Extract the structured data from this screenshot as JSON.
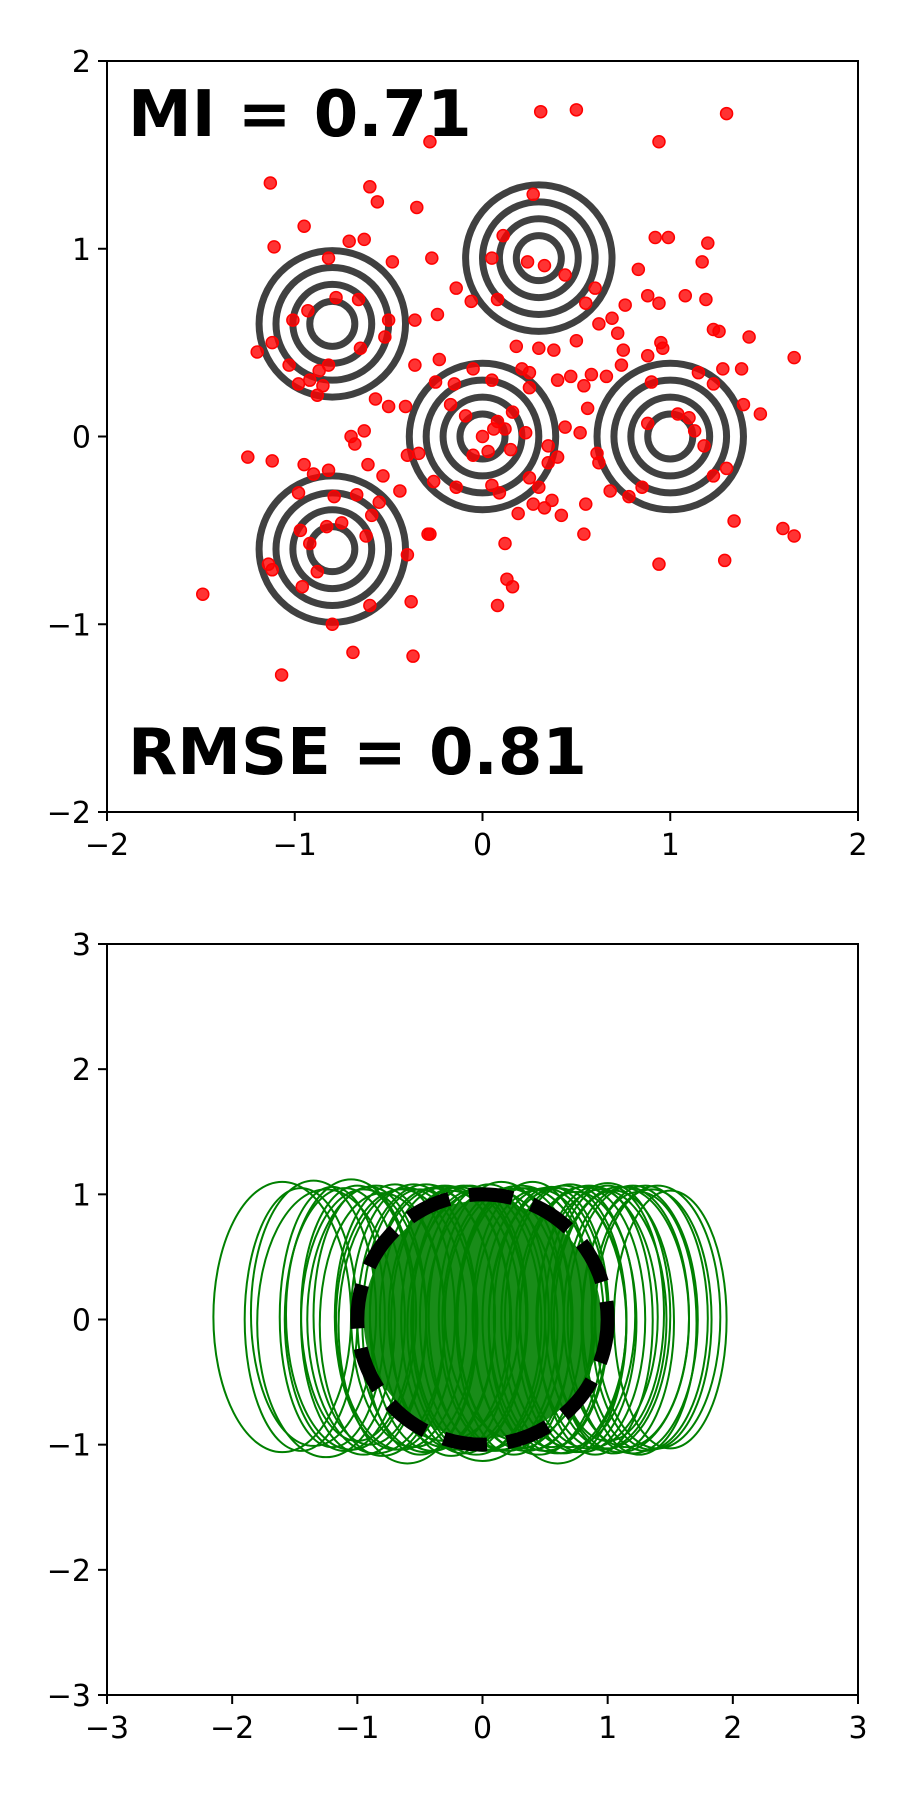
{
  "chart_data": [
    {
      "type": "scatter",
      "title": "",
      "xlabel": "",
      "ylabel": "",
      "xlim": [
        -2,
        2
      ],
      "ylim": [
        -2,
        2
      ],
      "xticks": [
        -2,
        -1,
        0,
        1,
        2
      ],
      "yticks": [
        -2,
        -1,
        0,
        1,
        2
      ],
      "xtick_labels": [
        "−2",
        "−1",
        "0",
        "1",
        "2"
      ],
      "ytick_labels": [
        "−2",
        "−1",
        "0",
        "1",
        "2"
      ],
      "grid": false,
      "annotations": {
        "mi": "MI = 0.71",
        "rmse": "RMSE = 0.81"
      },
      "contour_centers": [
        [
          -0.8,
          0.6
        ],
        [
          0.3,
          0.95
        ],
        [
          0.0,
          0.0
        ],
        [
          1.0,
          0.0
        ],
        [
          -0.8,
          -0.6
        ]
      ],
      "contour_radii": [
        0.12,
        0.21,
        0.3,
        0.39
      ],
      "contour_color": "#404040",
      "point_color": "#ff0000",
      "points": [
        [
          -1.49,
          -0.84
        ],
        [
          -1.07,
          -1.27
        ],
        [
          -0.37,
          -1.17
        ],
        [
          -0.69,
          -1.15
        ],
        [
          0.13,
          -0.76
        ],
        [
          0.16,
          -0.8
        ],
        [
          0.08,
          -0.9
        ],
        [
          -1.14,
          -0.68
        ],
        [
          -1.12,
          -0.71
        ],
        [
          -0.96,
          -0.8
        ],
        [
          -0.88,
          -0.72
        ],
        [
          -0.6,
          -0.9
        ],
        [
          -0.8,
          -1.0
        ],
        [
          -0.38,
          -0.88
        ],
        [
          -0.4,
          -0.63
        ],
        [
          -0.28,
          -0.52
        ],
        [
          0.12,
          -0.57
        ],
        [
          -0.97,
          -0.5
        ],
        [
          -0.92,
          -0.57
        ],
        [
          -0.83,
          -0.48
        ],
        [
          -0.75,
          -0.46
        ],
        [
          -0.62,
          -0.53
        ],
        [
          -0.59,
          -0.42
        ],
        [
          -0.55,
          -0.35
        ],
        [
          -0.98,
          -0.3
        ],
        [
          -0.9,
          -0.2
        ],
        [
          -0.79,
          -0.32
        ],
        [
          -0.67,
          -0.31
        ],
        [
          -0.53,
          -0.21
        ],
        [
          -0.44,
          -0.29
        ],
        [
          -1.25,
          -0.11
        ],
        [
          -1.12,
          -0.13
        ],
        [
          -0.95,
          -0.15
        ],
        [
          -0.82,
          -0.18
        ],
        [
          -0.68,
          -0.04
        ],
        [
          -0.61,
          -0.15
        ],
        [
          -0.4,
          -0.1
        ],
        [
          -0.26,
          -0.24
        ],
        [
          -0.7,
          0.0
        ],
        [
          -0.63,
          0.03
        ],
        [
          -0.5,
          0.16
        ],
        [
          -0.41,
          0.16
        ],
        [
          -0.57,
          0.2
        ],
        [
          -1.12,
          0.5
        ],
        [
          -1.2,
          0.45
        ],
        [
          -1.03,
          0.38
        ],
        [
          -0.92,
          0.3
        ],
        [
          -0.85,
          0.27
        ],
        [
          -0.98,
          0.28
        ],
        [
          -0.87,
          0.35
        ],
        [
          -0.82,
          0.38
        ],
        [
          -0.88,
          0.22
        ],
        [
          -0.65,
          0.47
        ],
        [
          -0.52,
          0.53
        ],
        [
          -0.36,
          0.38
        ],
        [
          -0.25,
          0.29
        ],
        [
          -0.15,
          0.28
        ],
        [
          -1.01,
          0.62
        ],
        [
          -0.93,
          0.67
        ],
        [
          -0.78,
          0.74
        ],
        [
          -0.66,
          0.73
        ],
        [
          -0.5,
          0.62
        ],
        [
          -0.36,
          0.62
        ],
        [
          -1.11,
          1.01
        ],
        [
          -0.95,
          1.12
        ],
        [
          -0.82,
          0.95
        ],
        [
          -0.71,
          1.04
        ],
        [
          -0.63,
          1.05
        ],
        [
          -0.56,
          1.25
        ],
        [
          -0.6,
          1.33
        ],
        [
          -0.48,
          0.93
        ],
        [
          -1.13,
          1.35
        ],
        [
          -0.35,
          1.22
        ],
        [
          -0.27,
          0.95
        ],
        [
          -0.24,
          0.65
        ],
        [
          -0.14,
          0.79
        ],
        [
          -0.06,
          0.72
        ],
        [
          0.08,
          0.73
        ],
        [
          0.05,
          0.95
        ],
        [
          0.11,
          1.07
        ],
        [
          0.24,
          0.93
        ],
        [
          0.33,
          0.91
        ],
        [
          0.44,
          0.86
        ],
        [
          0.27,
          1.29
        ],
        [
          0.55,
          0.71
        ],
        [
          0.6,
          0.79
        ],
        [
          0.76,
          0.7
        ],
        [
          0.83,
          0.89
        ],
        [
          0.88,
          0.75
        ],
        [
          0.72,
          0.55
        ],
        [
          0.62,
          0.6
        ],
        [
          0.5,
          0.51
        ],
        [
          0.47,
          0.32
        ],
        [
          0.4,
          0.3
        ],
        [
          0.21,
          0.36
        ],
        [
          0.3,
          0.47
        ],
        [
          0.18,
          0.48
        ],
        [
          0.38,
          0.46
        ],
        [
          -0.05,
          0.36
        ],
        [
          0.25,
          0.26
        ],
        [
          0.25,
          0.34
        ],
        [
          0.05,
          0.3
        ],
        [
          0.54,
          0.27
        ],
        [
          0.66,
          0.32
        ],
        [
          0.74,
          0.38
        ],
        [
          0.88,
          0.43
        ],
        [
          0.95,
          0.5
        ],
        [
          0.94,
          0.71
        ],
        [
          0.99,
          1.06
        ],
        [
          1.08,
          0.75
        ],
        [
          1.17,
          0.93
        ],
        [
          1.19,
          0.73
        ],
        [
          1.2,
          1.03
        ],
        [
          1.23,
          0.57
        ],
        [
          1.26,
          0.56
        ],
        [
          1.15,
          0.34
        ],
        [
          1.23,
          0.28
        ],
        [
          1.38,
          0.36
        ],
        [
          1.42,
          0.53
        ],
        [
          1.48,
          0.12
        ],
        [
          1.39,
          0.17
        ],
        [
          1.28,
          0.36
        ],
        [
          1.66,
          0.42
        ],
        [
          1.1,
          0.1
        ],
        [
          1.18,
          -0.05
        ],
        [
          1.3,
          -0.17
        ],
        [
          1.23,
          -0.21
        ],
        [
          1.34,
          -0.45
        ],
        [
          1.6,
          -0.49
        ],
        [
          1.66,
          -0.53
        ],
        [
          1.29,
          -0.66
        ],
        [
          0.94,
          -0.68
        ],
        [
          0.85,
          -0.27
        ],
        [
          0.68,
          -0.29
        ],
        [
          0.61,
          -0.09
        ],
        [
          0.62,
          -0.14
        ],
        [
          0.52,
          0.02
        ],
        [
          0.4,
          -0.11
        ],
        [
          0.35,
          -0.14
        ],
        [
          0.25,
          -0.22
        ],
        [
          0.3,
          -0.27
        ],
        [
          0.27,
          -0.36
        ],
        [
          0.33,
          -0.38
        ],
        [
          0.37,
          -0.34
        ],
        [
          0.42,
          -0.42
        ],
        [
          0.55,
          -0.36
        ],
        [
          0.54,
          -0.52
        ],
        [
          0.19,
          -0.41
        ],
        [
          0.09,
          -0.3
        ],
        [
          0.05,
          -0.26
        ],
        [
          0.0,
          0.0
        ],
        [
          0.06,
          0.04
        ],
        [
          0.12,
          0.04
        ],
        [
          0.15,
          -0.07
        ],
        [
          -0.05,
          -0.1
        ],
        [
          -0.14,
          -0.27
        ],
        [
          -0.29,
          -0.52
        ],
        [
          -0.17,
          0.17
        ],
        [
          -0.23,
          0.41
        ],
        [
          0.31,
          1.73
        ],
        [
          0.94,
          1.57
        ],
        [
          1.3,
          1.72
        ],
        [
          0.5,
          1.74
        ],
        [
          -0.28,
          1.57
        ],
        [
          0.92,
          1.06
        ],
        [
          1.04,
          0.12
        ],
        [
          0.56,
          0.15
        ],
        [
          1.13,
          0.03
        ],
        [
          0.78,
          -0.32
        ],
        [
          0.9,
          0.29
        ],
        [
          0.96,
          0.47
        ],
        [
          0.88,
          0.07
        ],
        [
          0.16,
          0.13
        ],
        [
          0.08,
          0.08
        ],
        [
          0.23,
          0.02
        ],
        [
          -0.09,
          0.11
        ],
        [
          0.03,
          -0.08
        ],
        [
          -0.34,
          -0.09
        ],
        [
          0.35,
          -0.05
        ],
        [
          0.44,
          0.05
        ],
        [
          0.58,
          0.33
        ],
        [
          0.69,
          0.63
        ],
        [
          0.75,
          0.46
        ]
      ]
    },
    {
      "type": "line",
      "title": "",
      "xlabel": "",
      "ylabel": "",
      "xlim": [
        -3,
        3
      ],
      "ylim": [
        -3,
        3
      ],
      "xticks": [
        -3,
        -2,
        -1,
        0,
        1,
        2,
        3
      ],
      "yticks": [
        -3,
        -2,
        -1,
        0,
        1,
        2,
        3
      ],
      "xtick_labels": [
        "−3",
        "−2",
        "−1",
        "0",
        "1",
        "2",
        "3"
      ],
      "ytick_labels": [
        "−3",
        "−2",
        "−1",
        "0",
        "1",
        "2",
        "3"
      ],
      "grid": false,
      "green_color": "#008000",
      "reference_circle": {
        "cx": 0,
        "cy": 0,
        "r": 1,
        "color": "#000000",
        "style": "dashed"
      },
      "ellipses": [
        [
          -1.6,
          0.02,
          0.55,
          1.08
        ],
        [
          -1.45,
          0.0,
          0.45,
          1.05
        ],
        [
          -1.35,
          0.05,
          0.5,
          1.06
        ],
        [
          -1.25,
          -0.03,
          0.55,
          1.07
        ],
        [
          -1.2,
          0.02,
          0.42,
          1.04
        ],
        [
          -1.1,
          0.0,
          0.48,
          1.05
        ],
        [
          -1.05,
          0.04,
          0.52,
          1.08
        ],
        [
          -0.95,
          -0.02,
          0.5,
          1.06
        ],
        [
          -0.9,
          0.03,
          0.45,
          1.03
        ],
        [
          -0.85,
          0.0,
          0.55,
          1.07
        ],
        [
          -0.8,
          -0.04,
          0.5,
          1.05
        ],
        [
          -0.7,
          0.02,
          0.48,
          1.06
        ],
        [
          -0.65,
          0.0,
          0.52,
          1.04
        ],
        [
          -0.55,
          0.03,
          0.5,
          1.05
        ],
        [
          -0.5,
          -0.02,
          0.46,
          1.06
        ],
        [
          -0.45,
          0.01,
          0.55,
          1.07
        ],
        [
          -0.4,
          0.0,
          0.5,
          1.05
        ],
        [
          -0.3,
          0.02,
          0.52,
          1.04
        ],
        [
          -0.25,
          -0.03,
          0.48,
          1.06
        ],
        [
          -0.2,
          0.01,
          0.55,
          1.05
        ],
        [
          -0.15,
          0.0,
          0.5,
          1.07
        ],
        [
          -0.1,
          0.03,
          0.46,
          1.04
        ],
        [
          -0.05,
          -0.02,
          0.52,
          1.06
        ],
        [
          0.0,
          0.0,
          0.5,
          1.05
        ],
        [
          0.05,
          0.02,
          0.48,
          1.06
        ],
        [
          0.1,
          -0.01,
          0.55,
          1.04
        ],
        [
          0.15,
          0.03,
          0.5,
          1.07
        ],
        [
          0.2,
          0.0,
          0.52,
          1.05
        ],
        [
          0.25,
          -0.02,
          0.46,
          1.06
        ],
        [
          0.3,
          0.01,
          0.5,
          1.04
        ],
        [
          0.35,
          0.0,
          0.55,
          1.05
        ],
        [
          0.4,
          0.03,
          0.48,
          1.07
        ],
        [
          0.45,
          -0.02,
          0.52,
          1.06
        ],
        [
          0.5,
          0.0,
          0.5,
          1.05
        ],
        [
          0.55,
          0.02,
          0.46,
          1.04
        ],
        [
          0.6,
          -0.01,
          0.55,
          1.06
        ],
        [
          0.65,
          0.0,
          0.5,
          1.07
        ],
        [
          0.7,
          0.03,
          0.52,
          1.05
        ],
        [
          0.75,
          -0.02,
          0.48,
          1.04
        ],
        [
          0.8,
          0.0,
          0.5,
          1.06
        ],
        [
          0.85,
          0.02,
          0.55,
          1.05
        ],
        [
          0.9,
          -0.01,
          0.46,
          1.07
        ],
        [
          0.95,
          0.0,
          0.52,
          1.04
        ],
        [
          1.0,
          0.03,
          0.5,
          1.06
        ],
        [
          1.05,
          -0.02,
          0.48,
          1.05
        ],
        [
          1.1,
          0.0,
          0.55,
          1.06
        ],
        [
          1.15,
          0.02,
          0.5,
          1.04
        ],
        [
          1.2,
          0.0,
          0.52,
          1.07
        ],
        [
          1.25,
          -0.03,
          0.46,
          1.05
        ],
        [
          1.3,
          0.01,
          0.5,
          1.06
        ],
        [
          1.35,
          0.0,
          0.48,
          1.04
        ],
        [
          1.4,
          0.02,
          0.5,
          1.05
        ],
        [
          1.5,
          0.0,
          0.45,
          1.03
        ],
        [
          -0.6,
          -0.05,
          0.55,
          1.1
        ],
        [
          0.6,
          -0.05,
          0.55,
          1.1
        ],
        [
          0.0,
          -0.05,
          0.6,
          1.08
        ],
        [
          -0.3,
          0.05,
          0.6,
          1.02
        ],
        [
          0.3,
          0.05,
          0.6,
          1.02
        ],
        [
          1.0,
          0.05,
          0.45,
          1.02
        ],
        [
          -1.0,
          0.05,
          0.45,
          1.02
        ]
      ]
    }
  ]
}
